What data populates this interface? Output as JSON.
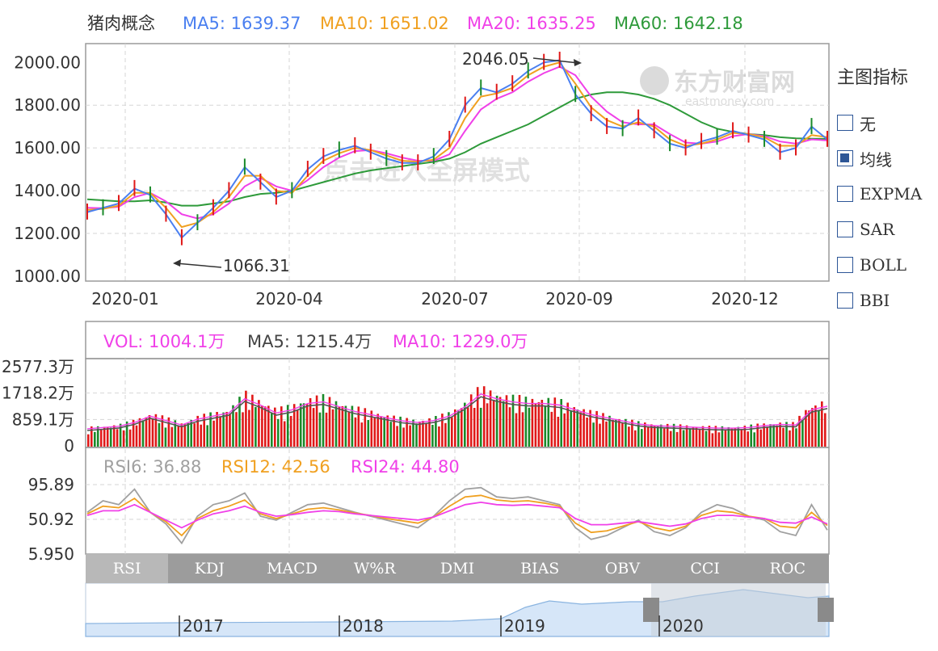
{
  "main": {
    "name": "猪肉概念",
    "ma": [
      {
        "label": "MA5: 1639.37",
        "color": "#4a7ff0"
      },
      {
        "label": "MA10: 1651.02",
        "color": "#f0a020"
      },
      {
        "label": "MA20: 1635.25",
        "color": "#f040e8"
      },
      {
        "label": "MA60: 1642.18",
        "color": "#2e9a3a"
      }
    ],
    "y_ticks": [
      "2000.00",
      "1800.00",
      "1600.00",
      "1400.00",
      "1200.00",
      "1000.00"
    ],
    "x_ticks": [
      "2020-01",
      "2020-04",
      "2020-07",
      "2020-09",
      "2020-12"
    ],
    "annotations": {
      "high": "2046.05",
      "low": "1066.31"
    },
    "watermark": {
      "brand": "东方财富网",
      "site": "eastmoney.com",
      "hint": "点击进入全屏模式"
    }
  },
  "volume": {
    "header": [
      {
        "label": "VOL: 1004.1万",
        "color": "#f040e8"
      },
      {
        "label": "MA5: 1215.4万",
        "color": "#444444"
      },
      {
        "label": "MA10: 1229.0万",
        "color": "#f040e8"
      }
    ],
    "y_ticks": [
      "2577.3万",
      "1718.2万",
      "859.1万",
      "0"
    ]
  },
  "rsi": {
    "header": [
      {
        "label": "RSI6: 36.88",
        "color": "#a0a0a0"
      },
      {
        "label": "RSI12: 42.56",
        "color": "#f0a020"
      },
      {
        "label": "RSI24: 44.80",
        "color": "#f040e8"
      }
    ],
    "y_ticks": [
      "95.89",
      "50.92",
      "5.950"
    ]
  },
  "sidebar": {
    "title": "主图指标",
    "options": [
      {
        "label": "无",
        "checked": false
      },
      {
        "label": "均线",
        "checked": true
      },
      {
        "label": "EXPMA",
        "checked": false
      },
      {
        "label": "SAR",
        "checked": false
      },
      {
        "label": "BOLL",
        "checked": false
      },
      {
        "label": "BBI",
        "checked": false
      }
    ]
  },
  "tabs": [
    "RSI",
    "KDJ",
    "MACD",
    "W%R",
    "DMI",
    "BIAS",
    "OBV",
    "CCI",
    "ROC"
  ],
  "active_tab": "RSI",
  "navigator": {
    "years": [
      "2017",
      "2018",
      "2019",
      "2020"
    ]
  },
  "chart_data": {
    "type": "line",
    "title": "猪肉概念",
    "ylim": [
      1000,
      2050
    ],
    "x_labels": [
      "2020-01",
      "2020-04",
      "2020-07",
      "2020-09",
      "2020-12"
    ],
    "series": [
      {
        "name": "MA5",
        "color": "#4a7ff0",
        "values": [
          1300,
          1320,
          1340,
          1410,
          1380,
          1290,
          1180,
          1250,
          1320,
          1400,
          1510,
          1440,
          1370,
          1400,
          1500,
          1560,
          1590,
          1610,
          1580,
          1550,
          1530,
          1530,
          1560,
          1640,
          1800,
          1880,
          1860,
          1900,
          1960,
          2000,
          2010,
          1850,
          1760,
          1700,
          1690,
          1740,
          1680,
          1620,
          1600,
          1630,
          1650,
          1680,
          1660,
          1640,
          1580,
          1600,
          1700,
          1640
        ]
      },
      {
        "name": "MA10",
        "color": "#f0a020",
        "values": [
          1310,
          1315,
          1330,
          1390,
          1390,
          1320,
          1230,
          1250,
          1300,
          1370,
          1470,
          1470,
          1400,
          1390,
          1470,
          1540,
          1575,
          1600,
          1590,
          1565,
          1540,
          1535,
          1545,
          1600,
          1740,
          1840,
          1855,
          1880,
          1940,
          1980,
          2000,
          1900,
          1790,
          1730,
          1700,
          1720,
          1700,
          1640,
          1610,
          1620,
          1640,
          1670,
          1665,
          1650,
          1610,
          1610,
          1660,
          1651
        ]
      },
      {
        "name": "MA20",
        "color": "#f040e8",
        "values": [
          1320,
          1318,
          1325,
          1370,
          1390,
          1350,
          1290,
          1270,
          1290,
          1340,
          1420,
          1460,
          1420,
          1400,
          1450,
          1510,
          1555,
          1585,
          1590,
          1575,
          1555,
          1540,
          1540,
          1570,
          1680,
          1780,
          1830,
          1860,
          1910,
          1950,
          1980,
          1940,
          1840,
          1770,
          1720,
          1710,
          1710,
          1665,
          1625,
          1620,
          1630,
          1655,
          1665,
          1655,
          1630,
          1620,
          1640,
          1635
        ]
      },
      {
        "name": "MA60",
        "color": "#2e9a3a",
        "values": [
          1360,
          1355,
          1350,
          1350,
          1355,
          1345,
          1330,
          1330,
          1340,
          1350,
          1370,
          1385,
          1390,
          1400,
          1420,
          1440,
          1460,
          1480,
          1495,
          1505,
          1515,
          1525,
          1535,
          1550,
          1580,
          1620,
          1650,
          1680,
          1710,
          1750,
          1790,
          1830,
          1850,
          1860,
          1860,
          1850,
          1830,
          1800,
          1760,
          1720,
          1690,
          1675,
          1665,
          1660,
          1650,
          1645,
          1643,
          1642
        ]
      }
    ],
    "volume_ma5": [
      500,
      540,
      580,
      700,
      900,
      760,
      620,
      800,
      900,
      1000,
      1450,
      1250,
      1000,
      1100,
      1300,
      1350,
      1200,
      1050,
      950,
      850,
      750,
      700,
      760,
      900,
      1200,
      1600,
      1450,
      1350,
      1300,
      1300,
      1250,
      1100,
      950,
      850,
      750,
      650,
      600,
      580,
      560,
      540,
      520,
      520,
      540,
      600,
      640,
      620,
      1100,
      1215
    ],
    "rsi6": [
      60,
      75,
      70,
      90,
      60,
      45,
      20,
      55,
      70,
      75,
      85,
      55,
      50,
      60,
      70,
      72,
      66,
      60,
      55,
      50,
      45,
      40,
      55,
      75,
      90,
      92,
      80,
      78,
      80,
      75,
      70,
      40,
      25,
      30,
      40,
      50,
      35,
      30,
      40,
      60,
      70,
      65,
      55,
      50,
      35,
      30,
      70,
      37
    ],
    "rsi12": [
      58,
      68,
      66,
      78,
      60,
      48,
      30,
      52,
      62,
      68,
      76,
      58,
      52,
      58,
      64,
      66,
      63,
      59,
      56,
      52,
      49,
      46,
      54,
      68,
      80,
      82,
      76,
      74,
      75,
      72,
      68,
      46,
      34,
      36,
      42,
      48,
      40,
      36,
      42,
      56,
      62,
      60,
      55,
      52,
      42,
      40,
      60,
      43
    ],
    "rsi24": [
      56,
      62,
      62,
      70,
      60,
      50,
      40,
      50,
      58,
      62,
      68,
      60,
      55,
      57,
      60,
      62,
      61,
      58,
      56,
      54,
      52,
      50,
      54,
      62,
      70,
      73,
      70,
      69,
      70,
      68,
      66,
      52,
      44,
      44,
      46,
      48,
      45,
      42,
      45,
      52,
      56,
      56,
      54,
      52,
      47,
      46,
      54,
      45
    ]
  }
}
